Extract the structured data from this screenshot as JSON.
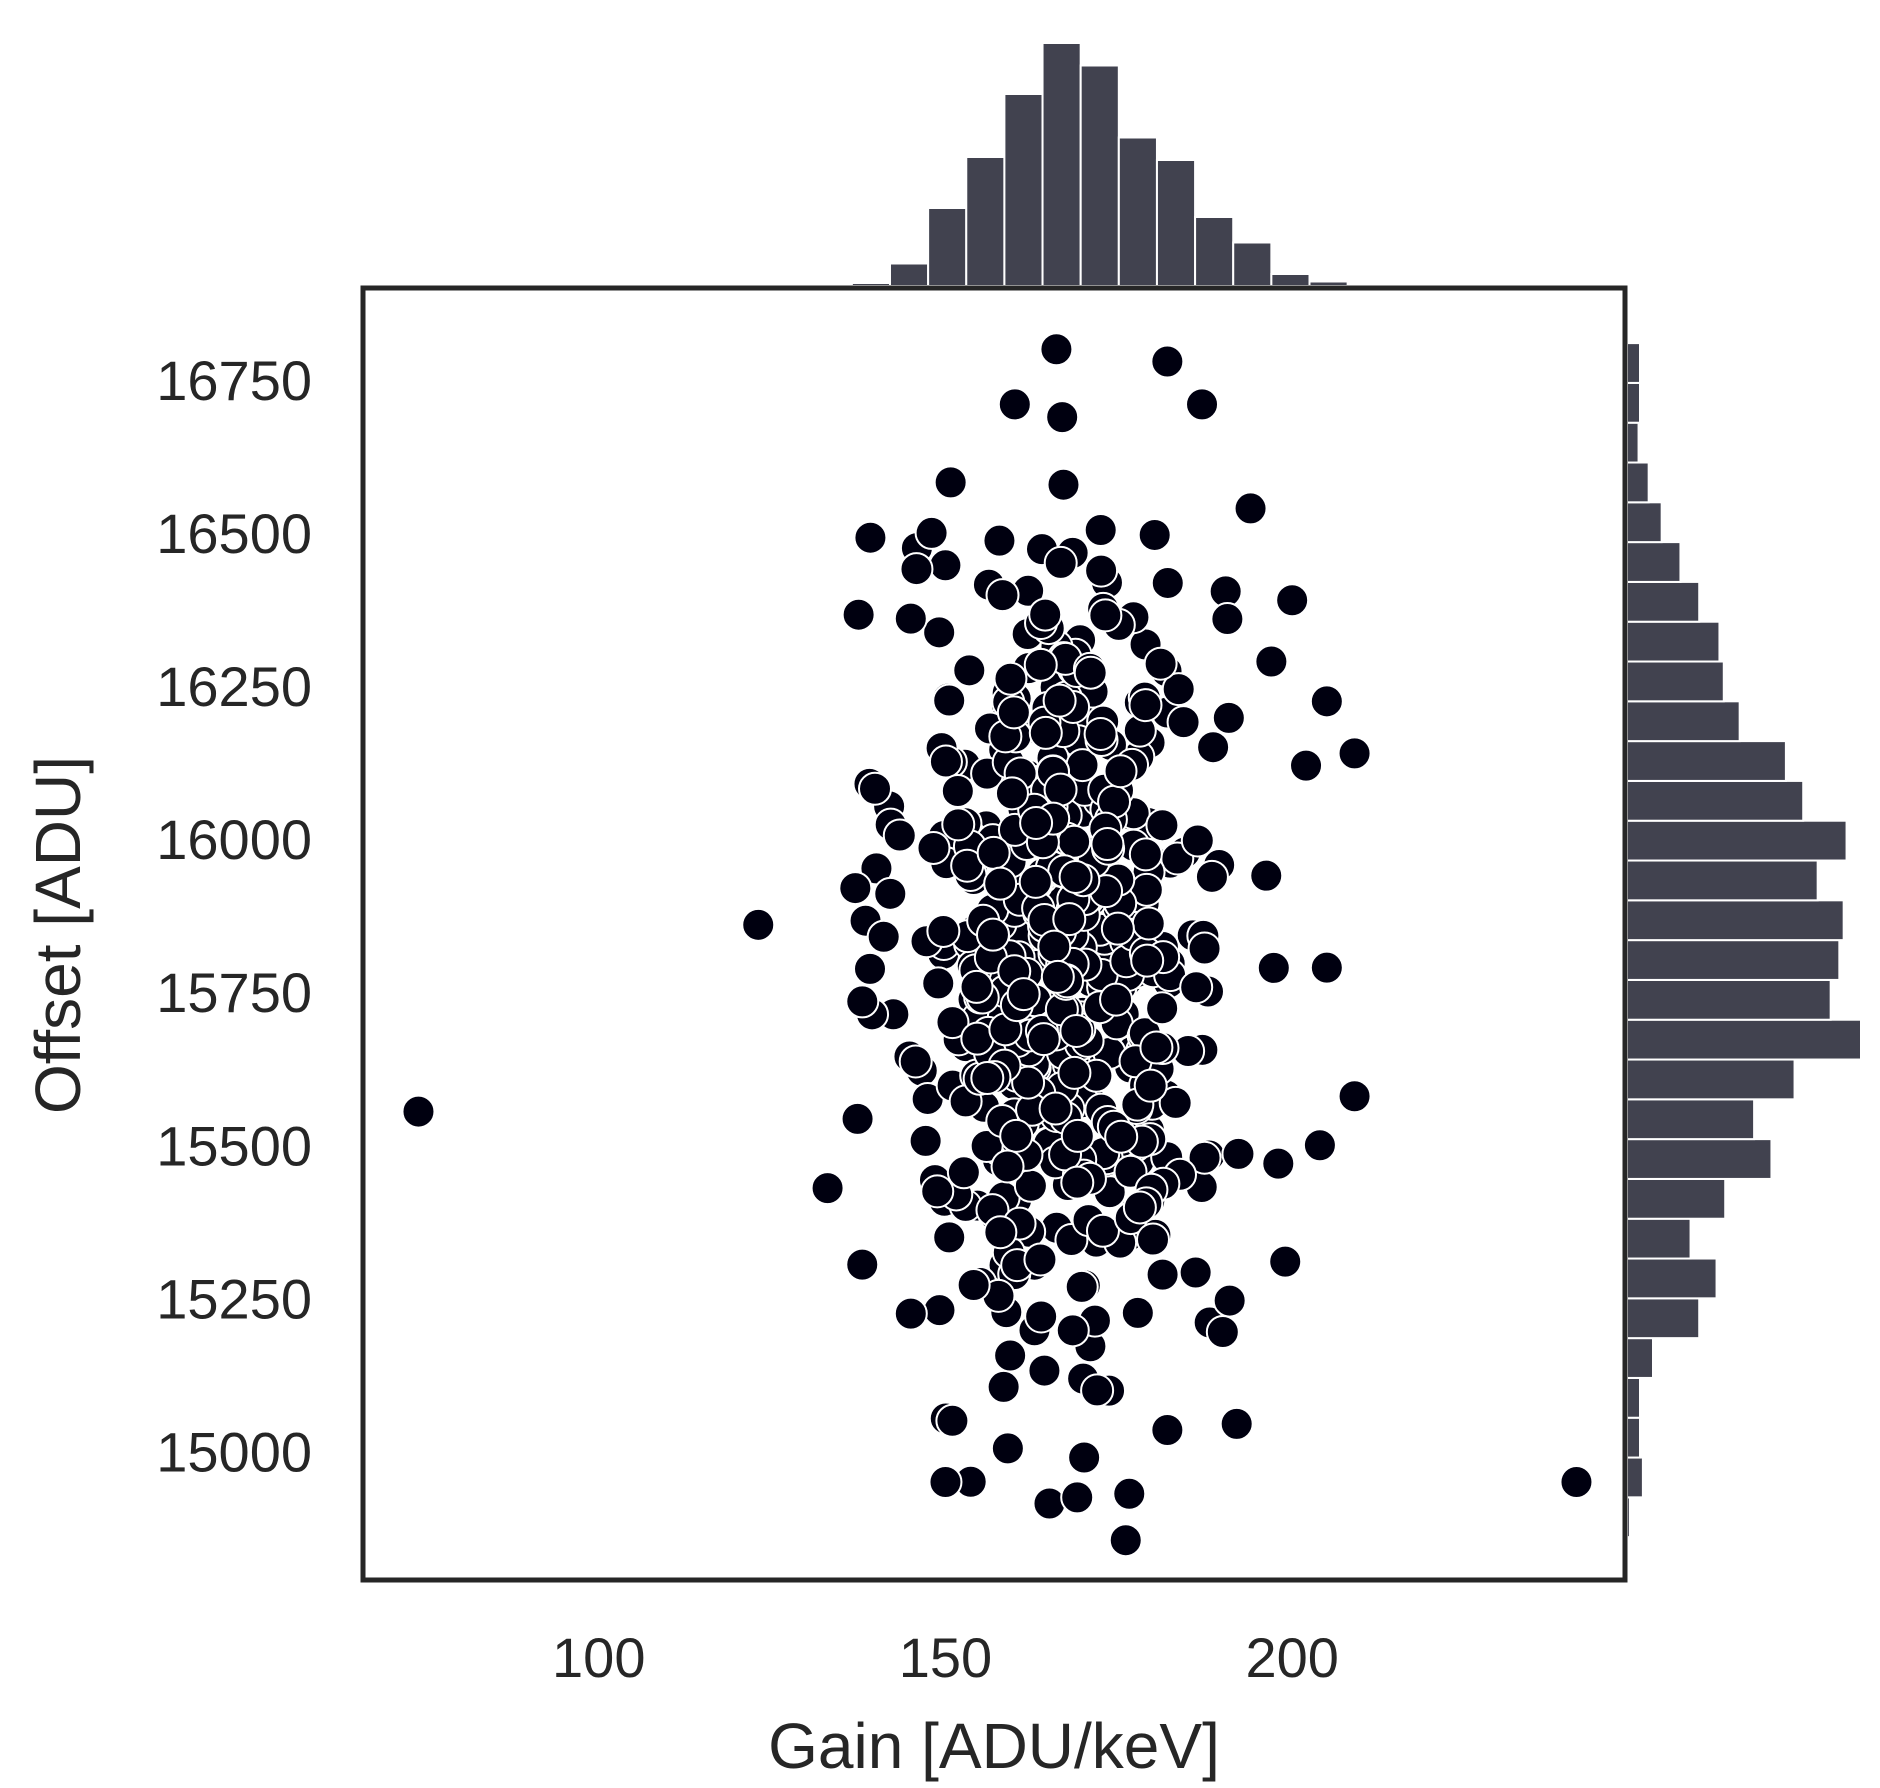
{
  "chart_data": {
    "type": "scatter",
    "subtype": "jointplot",
    "xlabel": "Gain [ADU/keV]",
    "ylabel": "Offset [ADU]",
    "xlim": [
      66,
      248
    ],
    "ylim": [
      14790,
      16900
    ],
    "xticks": [
      100,
      150,
      200
    ],
    "yticks": [
      15000,
      15250,
      15500,
      15750,
      16000,
      16250,
      16500,
      16750
    ],
    "grid": false,
    "legend": "none",
    "colors": {
      "points": "#000010",
      "point_edge": "#ffffff",
      "bars": "#41424f",
      "frame": "#262626"
    },
    "outliers": [
      {
        "x": 74,
        "y": 15555
      },
      {
        "x": 123,
        "y": 15860
      },
      {
        "x": 133,
        "y": 15430
      },
      {
        "x": 138,
        "y": 15305
      },
      {
        "x": 137,
        "y": 15920
      },
      {
        "x": 241,
        "y": 14950
      },
      {
        "x": 209,
        "y": 16140
      },
      {
        "x": 209,
        "y": 15580
      },
      {
        "x": 205,
        "y": 15790
      },
      {
        "x": 205,
        "y": 16225
      },
      {
        "x": 204,
        "y": 15500
      },
      {
        "x": 202,
        "y": 16120
      },
      {
        "x": 200,
        "y": 16390
      },
      {
        "x": 199,
        "y": 15310
      },
      {
        "x": 198,
        "y": 15470
      },
      {
        "x": 197,
        "y": 16290
      },
      {
        "x": 194,
        "y": 16540
      },
      {
        "x": 192,
        "y": 15045
      },
      {
        "x": 190,
        "y": 15195
      },
      {
        "x": 187,
        "y": 16710
      },
      {
        "x": 182,
        "y": 16780
      },
      {
        "x": 166,
        "y": 16800
      },
      {
        "x": 160,
        "y": 16710
      },
      {
        "x": 148,
        "y": 16500
      },
      {
        "x": 145,
        "y": 16360
      },
      {
        "x": 145,
        "y": 15225
      },
      {
        "x": 150,
        "y": 14950
      },
      {
        "x": 151,
        "y": 15050
      },
      {
        "x": 159,
        "y": 15005
      },
      {
        "x": 165,
        "y": 14915
      },
      {
        "x": 169,
        "y": 14925
      },
      {
        "x": 170,
        "y": 14990
      },
      {
        "x": 176,
        "y": 14855
      },
      {
        "x": 182,
        "y": 15035
      }
    ],
    "cloud": {
      "count": 560,
      "x_mean": 167,
      "x_sd": 11.5,
      "y_mean": 15830,
      "y_sd": 340,
      "x_range": [
        137,
        200
      ],
      "y_range": [
        14880,
        16700
      ]
    },
    "x_marginal": {
      "bins": [
        {
          "x0": 136.5,
          "x1": 142,
          "count": 2
        },
        {
          "x0": 142,
          "x1": 147.5,
          "count": 15
        },
        {
          "x0": 147.5,
          "x1": 153,
          "count": 52
        },
        {
          "x0": 153,
          "x1": 158.5,
          "count": 86
        },
        {
          "x0": 158.5,
          "x1": 164,
          "count": 128
        },
        {
          "x0": 164,
          "x1": 169.5,
          "count": 162
        },
        {
          "x0": 169.5,
          "x1": 175,
          "count": 147
        },
        {
          "x0": 175,
          "x1": 180.5,
          "count": 99
        },
        {
          "x0": 180.5,
          "x1": 186,
          "count": 84
        },
        {
          "x0": 186,
          "x1": 191.5,
          "count": 46
        },
        {
          "x0": 191.5,
          "x1": 197,
          "count": 29
        },
        {
          "x0": 197,
          "x1": 202.5,
          "count": 8
        },
        {
          "x0": 202.5,
          "x1": 208,
          "count": 3
        }
      ]
    },
    "y_marginal": {
      "bins": [
        {
          "y0": 14860,
          "y1": 14925,
          "count": 2
        },
        {
          "y0": 14925,
          "y1": 14990,
          "count": 11
        },
        {
          "y0": 14990,
          "y1": 15055,
          "count": 9
        },
        {
          "y0": 15055,
          "y1": 15120,
          "count": 9
        },
        {
          "y0": 15120,
          "y1": 15185,
          "count": 18
        },
        {
          "y0": 15185,
          "y1": 15250,
          "count": 50
        },
        {
          "y0": 15250,
          "y1": 15315,
          "count": 62
        },
        {
          "y0": 15315,
          "y1": 15380,
          "count": 44
        },
        {
          "y0": 15380,
          "y1": 15445,
          "count": 68
        },
        {
          "y0": 15445,
          "y1": 15510,
          "count": 100
        },
        {
          "y0": 15510,
          "y1": 15575,
          "count": 88
        },
        {
          "y0": 15575,
          "y1": 15640,
          "count": 116
        },
        {
          "y0": 15640,
          "y1": 15705,
          "count": 162
        },
        {
          "y0": 15705,
          "y1": 15770,
          "count": 141
        },
        {
          "y0": 15770,
          "y1": 15835,
          "count": 147
        },
        {
          "y0": 15835,
          "y1": 15900,
          "count": 150
        },
        {
          "y0": 15900,
          "y1": 15965,
          "count": 132
        },
        {
          "y0": 15965,
          "y1": 16030,
          "count": 152
        },
        {
          "y0": 16030,
          "y1": 16095,
          "count": 122
        },
        {
          "y0": 16095,
          "y1": 16160,
          "count": 110
        },
        {
          "y0": 16160,
          "y1": 16225,
          "count": 78
        },
        {
          "y0": 16225,
          "y1": 16290,
          "count": 67
        },
        {
          "y0": 16290,
          "y1": 16355,
          "count": 64
        },
        {
          "y0": 16355,
          "y1": 16420,
          "count": 50
        },
        {
          "y0": 16420,
          "y1": 16485,
          "count": 37
        },
        {
          "y0": 16485,
          "y1": 16550,
          "count": 24
        },
        {
          "y0": 16550,
          "y1": 16615,
          "count": 15
        },
        {
          "y0": 16615,
          "y1": 16680,
          "count": 8
        },
        {
          "y0": 16680,
          "y1": 16745,
          "count": 9
        },
        {
          "y0": 16745,
          "y1": 16810,
          "count": 9
        }
      ]
    }
  }
}
